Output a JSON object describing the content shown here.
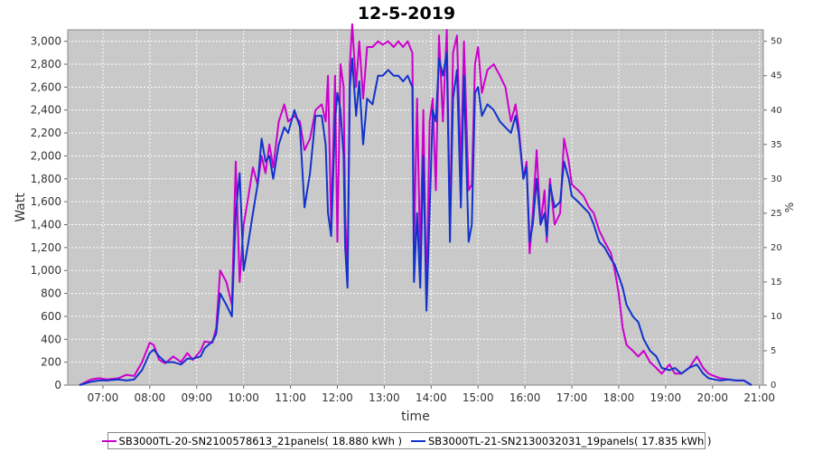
{
  "chart_data": {
    "type": "line",
    "title": "12-5-2019",
    "xlabel": "time",
    "ylabel": "Watt",
    "y2label": "%",
    "ylim": [
      0,
      3100
    ],
    "y2lim": [
      0,
      51.67
    ],
    "xlim": [
      "06:15",
      "21:05"
    ],
    "yticks": [
      0,
      200,
      400,
      600,
      800,
      1000,
      1200,
      1400,
      1600,
      1800,
      2000,
      2200,
      2400,
      2600,
      2800,
      3000
    ],
    "ytick_labels": [
      "0",
      "200",
      "400",
      "600",
      "800",
      "1,000",
      "1,200",
      "1,400",
      "1,600",
      "1,800",
      "2,000",
      "2,200",
      "2,400",
      "2,600",
      "2,800",
      "3,000"
    ],
    "y2ticks": [
      0,
      5,
      10,
      15,
      20,
      25,
      30,
      35,
      40,
      45,
      50
    ],
    "y2tick_labels": [
      "0",
      "5",
      "10",
      "15",
      "20",
      "25",
      "30",
      "35",
      "40",
      "45",
      "50"
    ],
    "xticks": [
      "07:00",
      "08:00",
      "09:00",
      "10:00",
      "11:00",
      "12:00",
      "13:00",
      "14:00",
      "15:00",
      "16:00",
      "17:00",
      "18:00",
      "19:00",
      "20:00",
      "21:00"
    ],
    "grid": true,
    "legend_position": "bottom",
    "series": [
      {
        "name": "SB3000TL-20-SN2100578613_21panels( 18.880 kWh )",
        "color": "#cc00cc",
        "points": [
          [
            "06:30",
            0
          ],
          [
            "06:45",
            50
          ],
          [
            "06:55",
            60
          ],
          [
            "07:05",
            50
          ],
          [
            "07:20",
            60
          ],
          [
            "07:30",
            90
          ],
          [
            "07:40",
            80
          ],
          [
            "07:50",
            200
          ],
          [
            "08:00",
            370
          ],
          [
            "08:05",
            350
          ],
          [
            "08:12",
            220
          ],
          [
            "08:20",
            190
          ],
          [
            "08:30",
            250
          ],
          [
            "08:40",
            200
          ],
          [
            "08:48",
            280
          ],
          [
            "08:55",
            220
          ],
          [
            "09:05",
            300
          ],
          [
            "09:10",
            380
          ],
          [
            "09:20",
            370
          ],
          [
            "09:25",
            500
          ],
          [
            "09:30",
            1000
          ],
          [
            "09:38",
            900
          ],
          [
            "09:45",
            700
          ],
          [
            "09:50",
            1950
          ],
          [
            "09:55",
            900
          ],
          [
            "10:00",
            1400
          ],
          [
            "10:05",
            1600
          ],
          [
            "10:12",
            1900
          ],
          [
            "10:18",
            1750
          ],
          [
            "10:23",
            2000
          ],
          [
            "10:28",
            1850
          ],
          [
            "10:33",
            2100
          ],
          [
            "10:38",
            1900
          ],
          [
            "10:45",
            2300
          ],
          [
            "10:52",
            2450
          ],
          [
            "10:57",
            2300
          ],
          [
            "11:05",
            2350
          ],
          [
            "11:12",
            2300
          ],
          [
            "11:18",
            2050
          ],
          [
            "11:25",
            2150
          ],
          [
            "11:32",
            2400
          ],
          [
            "11:40",
            2450
          ],
          [
            "11:45",
            2300
          ],
          [
            "11:48",
            2700
          ],
          [
            "11:52",
            1400
          ],
          [
            "11:57",
            2700
          ],
          [
            "12:00",
            1250
          ],
          [
            "12:04",
            2800
          ],
          [
            "12:08",
            2600
          ],
          [
            "12:10",
            1500
          ],
          [
            "12:13",
            900
          ],
          [
            "12:16",
            2800
          ],
          [
            "12:19",
            3150
          ],
          [
            "12:24",
            2600
          ],
          [
            "12:28",
            3000
          ],
          [
            "12:33",
            2500
          ],
          [
            "12:38",
            2950
          ],
          [
            "12:45",
            2950
          ],
          [
            "12:52",
            3000
          ],
          [
            "12:58",
            2970
          ],
          [
            "13:05",
            3000
          ],
          [
            "13:12",
            2950
          ],
          [
            "13:18",
            3000
          ],
          [
            "13:24",
            2950
          ],
          [
            "13:30",
            3000
          ],
          [
            "13:36",
            2900
          ],
          [
            "13:38",
            1200
          ],
          [
            "13:42",
            2500
          ],
          [
            "13:46",
            1100
          ],
          [
            "13:50",
            2400
          ],
          [
            "13:54",
            700
          ],
          [
            "13:58",
            2300
          ],
          [
            "14:02",
            2500
          ],
          [
            "14:06",
            1700
          ],
          [
            "14:10",
            3050
          ],
          [
            "14:15",
            2300
          ],
          [
            "14:20",
            3100
          ],
          [
            "14:24",
            1350
          ],
          [
            "14:28",
            2900
          ],
          [
            "14:33",
            3050
          ],
          [
            "14:38",
            1850
          ],
          [
            "14:42",
            3000
          ],
          [
            "14:48",
            1700
          ],
          [
            "14:52",
            1750
          ],
          [
            "14:56",
            2800
          ],
          [
            "15:00",
            2950
          ],
          [
            "15:05",
            2550
          ],
          [
            "15:12",
            2750
          ],
          [
            "15:20",
            2800
          ],
          [
            "15:28",
            2700
          ],
          [
            "15:35",
            2600
          ],
          [
            "15:42",
            2300
          ],
          [
            "15:48",
            2450
          ],
          [
            "15:52",
            2250
          ],
          [
            "15:58",
            1800
          ],
          [
            "16:02",
            1950
          ],
          [
            "16:06",
            1150
          ],
          [
            "16:10",
            1500
          ],
          [
            "16:15",
            2050
          ],
          [
            "16:20",
            1400
          ],
          [
            "16:25",
            1700
          ],
          [
            "16:28",
            1250
          ],
          [
            "16:32",
            1800
          ],
          [
            "16:38",
            1400
          ],
          [
            "16:45",
            1500
          ],
          [
            "16:50",
            2150
          ],
          [
            "16:56",
            1950
          ],
          [
            "17:00",
            1750
          ],
          [
            "17:08",
            1700
          ],
          [
            "17:15",
            1650
          ],
          [
            "17:22",
            1550
          ],
          [
            "17:28",
            1500
          ],
          [
            "17:35",
            1350
          ],
          [
            "17:42",
            1250
          ],
          [
            "17:50",
            1150
          ],
          [
            "17:55",
            1000
          ],
          [
            "18:00",
            800
          ],
          [
            "18:05",
            500
          ],
          [
            "18:10",
            350
          ],
          [
            "18:18",
            300
          ],
          [
            "18:25",
            250
          ],
          [
            "18:32",
            300
          ],
          [
            "18:40",
            200
          ],
          [
            "18:48",
            150
          ],
          [
            "18:55",
            100
          ],
          [
            "19:05",
            180
          ],
          [
            "19:12",
            100
          ],
          [
            "19:20",
            100
          ],
          [
            "19:30",
            150
          ],
          [
            "19:40",
            250
          ],
          [
            "19:48",
            150
          ],
          [
            "19:55",
            100
          ],
          [
            "20:02",
            80
          ],
          [
            "20:10",
            60
          ],
          [
            "20:20",
            50
          ],
          [
            "20:30",
            40
          ],
          [
            "20:40",
            40
          ],
          [
            "20:50",
            0
          ]
        ]
      },
      {
        "name": "SB3000TL-21-SN2130032031_19panels( 17.835 kWh )",
        "color": "#1133cc",
        "points": [
          [
            "06:30",
            0
          ],
          [
            "06:45",
            30
          ],
          [
            "06:55",
            40
          ],
          [
            "07:05",
            40
          ],
          [
            "07:20",
            50
          ],
          [
            "07:30",
            40
          ],
          [
            "07:40",
            50
          ],
          [
            "07:50",
            130
          ],
          [
            "08:00",
            280
          ],
          [
            "08:05",
            310
          ],
          [
            "08:12",
            250
          ],
          [
            "08:20",
            200
          ],
          [
            "08:30",
            200
          ],
          [
            "08:40",
            180
          ],
          [
            "08:48",
            230
          ],
          [
            "08:55",
            230
          ],
          [
            "09:05",
            250
          ],
          [
            "09:10",
            320
          ],
          [
            "09:20",
            380
          ],
          [
            "09:25",
            450
          ],
          [
            "09:30",
            800
          ],
          [
            "09:38",
            700
          ],
          [
            "09:45",
            600
          ],
          [
            "09:50",
            1500
          ],
          [
            "09:55",
            1850
          ],
          [
            "10:00",
            1000
          ],
          [
            "10:05",
            1200
          ],
          [
            "10:12",
            1500
          ],
          [
            "10:18",
            1750
          ],
          [
            "10:23",
            2150
          ],
          [
            "10:28",
            1950
          ],
          [
            "10:33",
            2000
          ],
          [
            "10:38",
            1800
          ],
          [
            "10:45",
            2100
          ],
          [
            "10:52",
            2250
          ],
          [
            "10:57",
            2200
          ],
          [
            "11:05",
            2400
          ],
          [
            "11:12",
            2250
          ],
          [
            "11:18",
            1550
          ],
          [
            "11:25",
            1850
          ],
          [
            "11:32",
            2350
          ],
          [
            "11:40",
            2350
          ],
          [
            "11:45",
            2100
          ],
          [
            "11:48",
            1500
          ],
          [
            "11:52",
            1300
          ],
          [
            "11:57",
            2300
          ],
          [
            "12:00",
            2550
          ],
          [
            "12:04",
            2400
          ],
          [
            "12:08",
            2000
          ],
          [
            "12:10",
            1200
          ],
          [
            "12:13",
            850
          ],
          [
            "12:16",
            2600
          ],
          [
            "12:19",
            2850
          ],
          [
            "12:24",
            2350
          ],
          [
            "12:28",
            2650
          ],
          [
            "12:33",
            2100
          ],
          [
            "12:38",
            2500
          ],
          [
            "12:45",
            2450
          ],
          [
            "12:52",
            2700
          ],
          [
            "12:58",
            2700
          ],
          [
            "13:05",
            2750
          ],
          [
            "13:12",
            2700
          ],
          [
            "13:18",
            2700
          ],
          [
            "13:24",
            2650
          ],
          [
            "13:30",
            2700
          ],
          [
            "13:36",
            2600
          ],
          [
            "13:38",
            900
          ],
          [
            "13:42",
            1500
          ],
          [
            "13:46",
            850
          ],
          [
            "13:50",
            2000
          ],
          [
            "13:54",
            650
          ],
          [
            "13:58",
            1500
          ],
          [
            "14:02",
            2400
          ],
          [
            "14:06",
            2300
          ],
          [
            "14:10",
            2850
          ],
          [
            "14:15",
            2700
          ],
          [
            "14:20",
            2900
          ],
          [
            "14:24",
            1250
          ],
          [
            "14:28",
            2500
          ],
          [
            "14:33",
            2750
          ],
          [
            "14:38",
            1550
          ],
          [
            "14:42",
            2700
          ],
          [
            "14:48",
            1250
          ],
          [
            "14:52",
            1400
          ],
          [
            "14:56",
            2550
          ],
          [
            "15:00",
            2600
          ],
          [
            "15:05",
            2350
          ],
          [
            "15:12",
            2450
          ],
          [
            "15:20",
            2400
          ],
          [
            "15:28",
            2300
          ],
          [
            "15:35",
            2250
          ],
          [
            "15:42",
            2200
          ],
          [
            "15:48",
            2350
          ],
          [
            "15:52",
            2200
          ],
          [
            "15:58",
            1800
          ],
          [
            "16:02",
            1900
          ],
          [
            "16:06",
            1250
          ],
          [
            "16:10",
            1400
          ],
          [
            "16:15",
            1800
          ],
          [
            "16:20",
            1400
          ],
          [
            "16:25",
            1500
          ],
          [
            "16:28",
            1300
          ],
          [
            "16:32",
            1750
          ],
          [
            "16:38",
            1550
          ],
          [
            "16:45",
            1600
          ],
          [
            "16:50",
            1950
          ],
          [
            "16:56",
            1800
          ],
          [
            "17:00",
            1650
          ],
          [
            "17:08",
            1600
          ],
          [
            "17:15",
            1550
          ],
          [
            "17:22",
            1500
          ],
          [
            "17:28",
            1400
          ],
          [
            "17:35",
            1250
          ],
          [
            "17:42",
            1200
          ],
          [
            "17:50",
            1100
          ],
          [
            "17:55",
            1050
          ],
          [
            "18:00",
            950
          ],
          [
            "18:05",
            850
          ],
          [
            "18:10",
            700
          ],
          [
            "18:18",
            600
          ],
          [
            "18:25",
            550
          ],
          [
            "18:32",
            400
          ],
          [
            "18:40",
            300
          ],
          [
            "18:48",
            250
          ],
          [
            "18:55",
            150
          ],
          [
            "19:05",
            130
          ],
          [
            "19:12",
            150
          ],
          [
            "19:20",
            100
          ],
          [
            "19:30",
            150
          ],
          [
            "19:40",
            180
          ],
          [
            "19:48",
            100
          ],
          [
            "19:55",
            60
          ],
          [
            "20:02",
            50
          ],
          [
            "20:10",
            40
          ],
          [
            "20:20",
            50
          ],
          [
            "20:30",
            40
          ],
          [
            "20:40",
            40
          ],
          [
            "20:50",
            0
          ]
        ]
      }
    ]
  }
}
